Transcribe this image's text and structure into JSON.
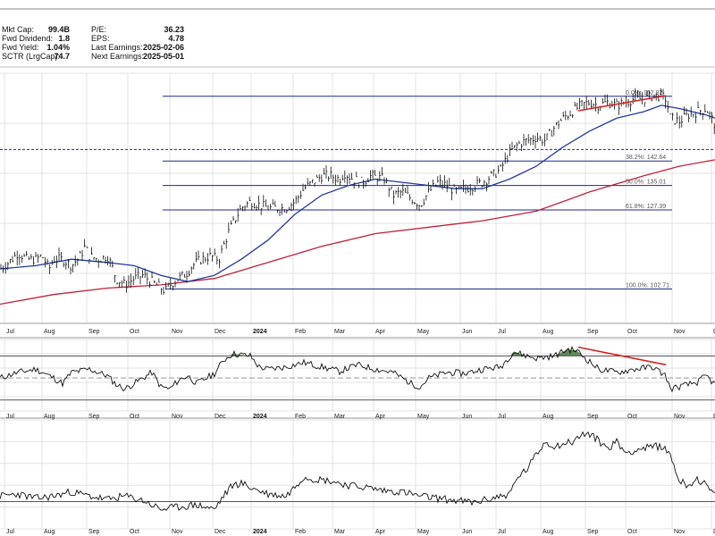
{
  "stats": [
    {
      "label": "Mkt Cap:",
      "value": "99.4B"
    },
    {
      "label": "Fwd Dividend:",
      "value": "1.8"
    },
    {
      "label": "Fwd Yield:",
      "value": "1.04%"
    },
    {
      "label": "SCTR (LrgCap):",
      "value": "74.7"
    },
    {
      "label": "P/E:",
      "value": "36.23"
    },
    {
      "label": "EPS:",
      "value": "4.78"
    },
    {
      "label": "Last Earnings:",
      "value": "2025-02-06"
    },
    {
      "label": "Next Earnings:",
      "value": "2025-05-01"
    }
  ],
  "chart_data": {
    "type": "line",
    "x_month_labels": [
      "Jul",
      "Aug",
      "Sep",
      "Oct",
      "Nov",
      "Dec",
      "2024",
      "Feb",
      "Mar",
      "Apr",
      "May",
      "Jun",
      "Jul",
      "Aug",
      "Sep",
      "Oct",
      "Nov",
      "Dec"
    ],
    "price_panel": {
      "ylim": [
        92,
        170
      ],
      "price_path": [
        [
          0,
          109
        ],
        [
          10,
          111
        ],
        [
          20,
          114
        ],
        [
          30,
          112
        ],
        [
          40,
          112
        ],
        [
          47,
          113
        ],
        [
          55,
          109
        ],
        [
          60,
          112
        ],
        [
          70,
          112
        ],
        [
          80,
          110
        ],
        [
          90,
          113
        ],
        [
          95,
          116
        ],
        [
          100,
          113
        ],
        [
          110,
          112
        ],
        [
          120,
          113
        ],
        [
          125,
          110
        ],
        [
          130,
          106
        ],
        [
          140,
          104
        ],
        [
          150,
          106
        ],
        [
          160,
          107
        ],
        [
          170,
          105
        ],
        [
          180,
          103
        ],
        [
          185,
          102
        ],
        [
          190,
          104
        ],
        [
          200,
          106
        ],
        [
          210,
          108
        ],
        [
          215,
          110
        ],
        [
          225,
          112
        ],
        [
          235,
          113
        ],
        [
          245,
          112
        ],
        [
          255,
          120
        ],
        [
          262,
          124
        ],
        [
          270,
          128
        ],
        [
          280,
          130
        ],
        [
          290,
          129
        ],
        [
          300,
          128
        ],
        [
          310,
          128
        ],
        [
          320,
          128
        ],
        [
          330,
          130
        ],
        [
          340,
          134
        ],
        [
          350,
          136
        ],
        [
          360,
          138
        ],
        [
          370,
          138
        ],
        [
          380,
          137
        ],
        [
          385,
          139
        ],
        [
          395,
          137
        ],
        [
          405,
          136
        ],
        [
          415,
          138
        ],
        [
          430,
          137
        ],
        [
          440,
          132
        ],
        [
          450,
          133
        ],
        [
          460,
          131
        ],
        [
          470,
          129
        ],
        [
          480,
          133
        ],
        [
          490,
          136
        ],
        [
          500,
          135
        ],
        [
          510,
          133
        ],
        [
          520,
          134
        ],
        [
          530,
          135
        ],
        [
          540,
          136
        ],
        [
          550,
          138
        ],
        [
          560,
          140
        ],
        [
          570,
          145
        ],
        [
          580,
          148
        ],
        [
          590,
          149
        ],
        [
          600,
          150
        ],
        [
          610,
          149
        ],
        [
          620,
          153
        ],
        [
          630,
          156
        ],
        [
          640,
          158
        ],
        [
          650,
          160
        ],
        [
          660,
          161
        ],
        [
          670,
          160
        ],
        [
          680,
          161
        ],
        [
          690,
          160
        ],
        [
          700,
          161
        ],
        [
          710,
          162
        ],
        [
          720,
          162
        ],
        [
          730,
          163
        ],
        [
          740,
          163
        ],
        [
          745,
          162
        ],
        [
          750,
          156
        ],
        [
          760,
          155
        ],
        [
          770,
          157
        ],
        [
          780,
          158
        ],
        [
          790,
          159
        ],
        [
          800,
          154
        ]
      ],
      "ma50_path": [
        [
          0,
          109
        ],
        [
          40,
          110
        ],
        [
          80,
          112
        ],
        [
          120,
          111
        ],
        [
          150,
          110
        ],
        [
          180,
          107
        ],
        [
          210,
          105
        ],
        [
          240,
          107
        ],
        [
          270,
          112
        ],
        [
          300,
          118
        ],
        [
          330,
          126
        ],
        [
          360,
          132
        ],
        [
          390,
          135
        ],
        [
          420,
          137
        ],
        [
          450,
          136
        ],
        [
          480,
          135
        ],
        [
          510,
          134
        ],
        [
          540,
          134
        ],
        [
          570,
          137
        ],
        [
          600,
          141
        ],
        [
          630,
          147
        ],
        [
          660,
          152
        ],
        [
          690,
          156
        ],
        [
          720,
          158
        ],
        [
          740,
          160
        ],
        [
          760,
          159
        ],
        [
          790,
          157
        ],
        [
          800,
          156
        ]
      ],
      "ma200_path": [
        [
          0,
          98
        ],
        [
          60,
          101
        ],
        [
          120,
          103
        ],
        [
          180,
          104
        ],
        [
          240,
          106
        ],
        [
          300,
          111
        ],
        [
          360,
          116
        ],
        [
          420,
          120
        ],
        [
          480,
          122
        ],
        [
          540,
          124
        ],
        [
          600,
          127
        ],
        [
          660,
          133
        ],
        [
          720,
          138
        ],
        [
          760,
          141
        ],
        [
          800,
          143
        ]
      ],
      "fib_levels": [
        {
          "label": "0.0%: 162.82",
          "value": 162.82
        },
        {
          "label": "38.2%: 142.64",
          "value": 142.64
        },
        {
          "label": "50.0%: 135.01",
          "value": 135.01
        },
        {
          "label": "61.8%: 127.39",
          "value": 127.39
        },
        {
          "label": "100.0%: 102.71",
          "value": 102.71
        }
      ],
      "support_dashed_value": 146.2,
      "trendline": {
        "from": [
          647,
          158.3
        ],
        "to": [
          745,
          163
        ]
      }
    },
    "rsi_panel": {
      "ylim": [
        20,
        85
      ],
      "levels": [
        70,
        30
      ],
      "midline": 50,
      "path": [
        [
          0,
          50
        ],
        [
          20,
          55
        ],
        [
          40,
          58
        ],
        [
          60,
          50
        ],
        [
          70,
          45
        ],
        [
          80,
          55
        ],
        [
          100,
          58
        ],
        [
          120,
          52
        ],
        [
          130,
          44
        ],
        [
          140,
          40
        ],
        [
          150,
          45
        ],
        [
          170,
          55
        ],
        [
          180,
          42
        ],
        [
          190,
          40
        ],
        [
          200,
          48
        ],
        [
          210,
          52
        ],
        [
          220,
          45
        ],
        [
          240,
          54
        ],
        [
          250,
          66
        ],
        [
          260,
          72
        ],
        [
          270,
          71
        ],
        [
          280,
          70
        ],
        [
          290,
          60
        ],
        [
          300,
          58
        ],
        [
          320,
          60
        ],
        [
          340,
          64
        ],
        [
          360,
          60
        ],
        [
          380,
          56
        ],
        [
          400,
          62
        ],
        [
          420,
          58
        ],
        [
          440,
          55
        ],
        [
          460,
          45
        ],
        [
          470,
          42
        ],
        [
          480,
          50
        ],
        [
          500,
          55
        ],
        [
          520,
          54
        ],
        [
          540,
          58
        ],
        [
          560,
          60
        ],
        [
          575,
          74
        ],
        [
          585,
          71
        ],
        [
          600,
          68
        ],
        [
          620,
          70
        ],
        [
          635,
          76
        ],
        [
          645,
          75
        ],
        [
          655,
          68
        ],
        [
          670,
          58
        ],
        [
          690,
          55
        ],
        [
          710,
          58
        ],
        [
          730,
          60
        ],
        [
          745,
          52
        ],
        [
          750,
          40
        ],
        [
          760,
          42
        ],
        [
          780,
          46
        ],
        [
          790,
          52
        ],
        [
          800,
          44
        ]
      ],
      "trendline": {
        "from": [
          647,
          78
        ],
        "to": [
          745,
          62
        ]
      }
    },
    "lower_panel": {
      "ylim": [
        0,
        100
      ],
      "path": [
        [
          0,
          30
        ],
        [
          20,
          32
        ],
        [
          40,
          28
        ],
        [
          60,
          30
        ],
        [
          80,
          34
        ],
        [
          100,
          30
        ],
        [
          120,
          27
        ],
        [
          140,
          30
        ],
        [
          160,
          26
        ],
        [
          180,
          18
        ],
        [
          200,
          20
        ],
        [
          220,
          22
        ],
        [
          240,
          18
        ],
        [
          250,
          30
        ],
        [
          260,
          40
        ],
        [
          270,
          42
        ],
        [
          280,
          38
        ],
        [
          290,
          35
        ],
        [
          300,
          32
        ],
        [
          320,
          30
        ],
        [
          340,
          48
        ],
        [
          350,
          46
        ],
        [
          370,
          44
        ],
        [
          390,
          40
        ],
        [
          410,
          38
        ],
        [
          430,
          35
        ],
        [
          450,
          34
        ],
        [
          470,
          30
        ],
        [
          490,
          28
        ],
        [
          510,
          26
        ],
        [
          530,
          24
        ],
        [
          550,
          28
        ],
        [
          570,
          32
        ],
        [
          580,
          48
        ],
        [
          590,
          55
        ],
        [
          600,
          68
        ],
        [
          610,
          80
        ],
        [
          620,
          76
        ],
        [
          640,
          80
        ],
        [
          655,
          88
        ],
        [
          665,
          84
        ],
        [
          680,
          74
        ],
        [
          690,
          80
        ],
        [
          700,
          70
        ],
        [
          720,
          74
        ],
        [
          740,
          76
        ],
        [
          750,
          68
        ],
        [
          760,
          44
        ],
        [
          770,
          40
        ],
        [
          780,
          46
        ],
        [
          790,
          40
        ],
        [
          800,
          30
        ]
      ]
    }
  }
}
